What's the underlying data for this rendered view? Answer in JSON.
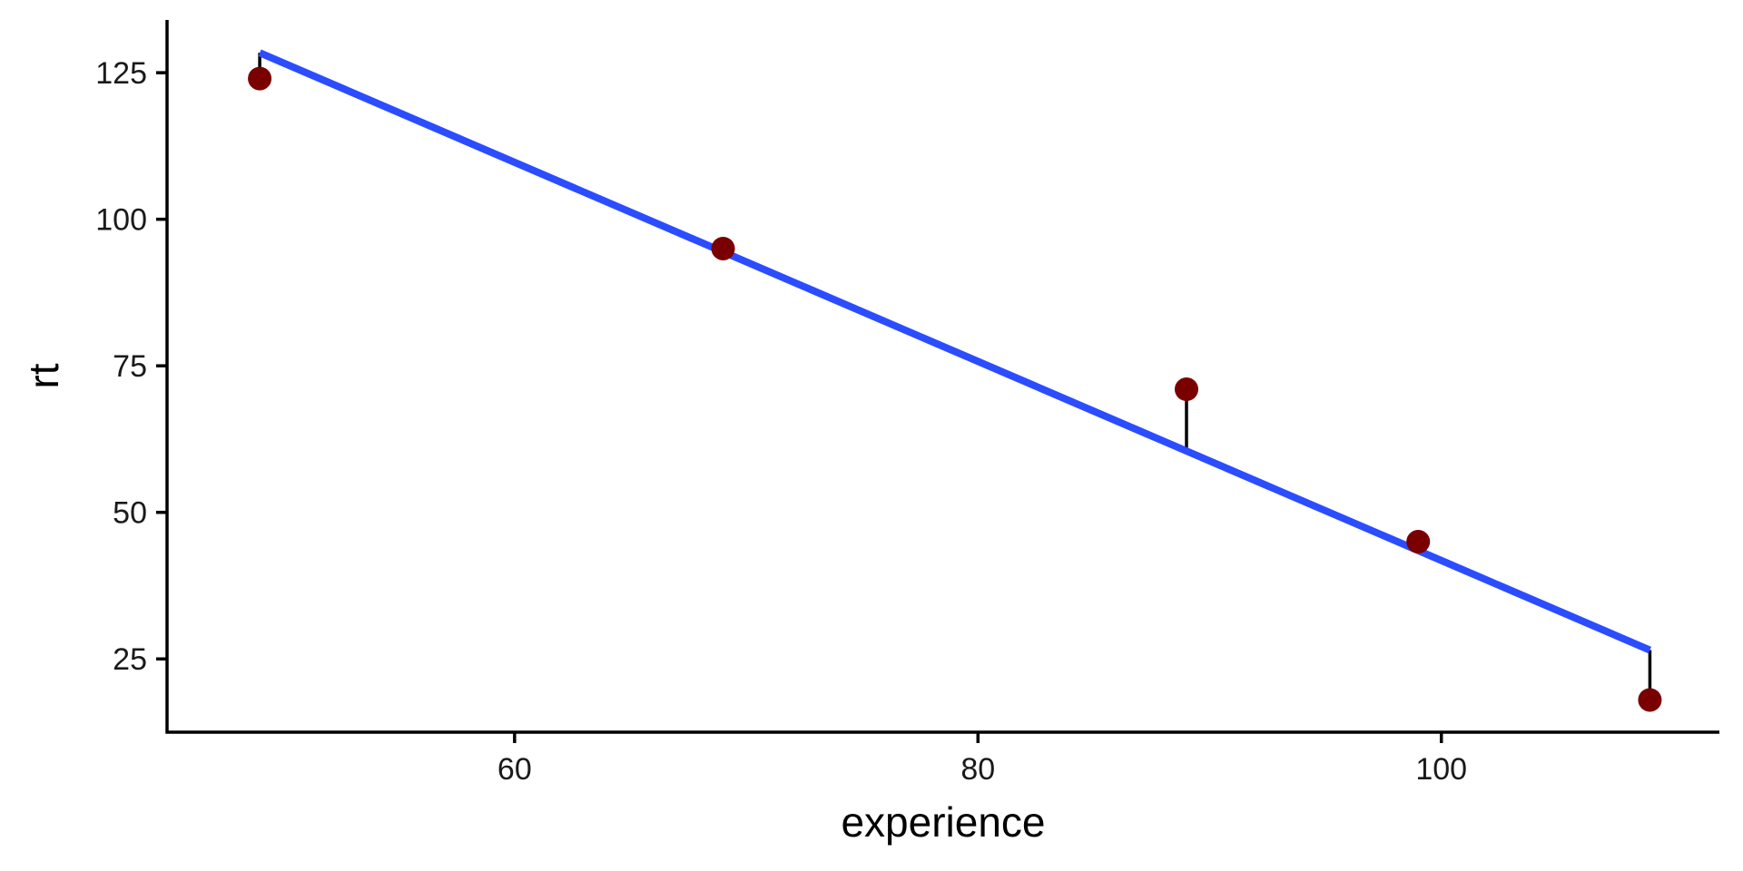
{
  "chart_data": {
    "type": "scatter",
    "title": "",
    "xlabel": "experience",
    "ylabel": "rt",
    "xlim": [
      45,
      112
    ],
    "ylim": [
      12.5,
      134
    ],
    "x_ticks": [
      60,
      80,
      100
    ],
    "y_ticks": [
      25,
      50,
      75,
      100,
      125
    ],
    "grid": false,
    "legend": "none",
    "points": [
      {
        "x": 49,
        "y": 124
      },
      {
        "x": 69,
        "y": 95
      },
      {
        "x": 89,
        "y": 71
      },
      {
        "x": 99,
        "y": 45
      },
      {
        "x": 109,
        "y": 18
      }
    ],
    "regression_line": {
      "x0": 49,
      "y0": 128.4,
      "x1": 109,
      "y1": 26.5
    },
    "residuals": true,
    "colors": {
      "points": "#7a0000",
      "line": "#2b4dff",
      "residuals": "#000000",
      "axes": "#000000"
    }
  }
}
